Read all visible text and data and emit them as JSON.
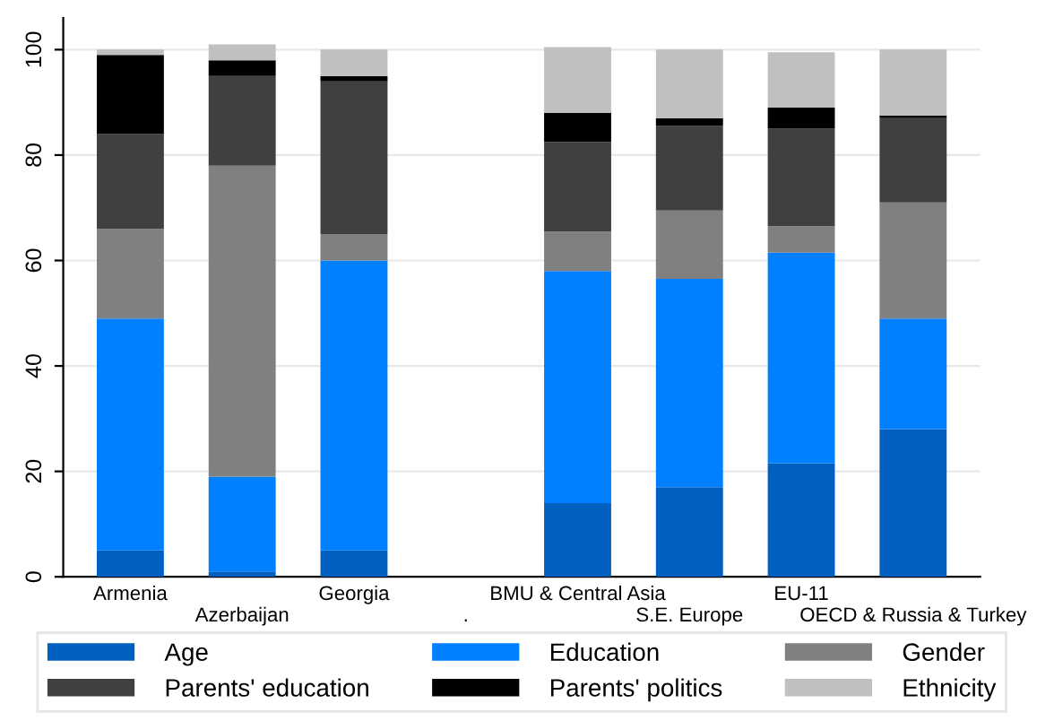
{
  "chart_data": {
    "type": "bar",
    "stacked": true,
    "categories": [
      "Armenia",
      "Azerbaijan",
      "Georgia",
      ".",
      "BMU & Central Asia",
      "S.E. Europe",
      "EU-11",
      "OECD & Russia & Turkey"
    ],
    "series": [
      {
        "name": "Age",
        "color": "#0060c0",
        "values": [
          5,
          1,
          5,
          null,
          14,
          17,
          21.5,
          28
        ]
      },
      {
        "name": "Education",
        "color": "#0080ff",
        "values": [
          44,
          18,
          55,
          null,
          44,
          39.5,
          40,
          21
        ]
      },
      {
        "name": "Gender",
        "color": "#808080",
        "values": [
          17,
          59,
          5,
          null,
          7.5,
          13,
          5,
          22
        ]
      },
      {
        "name": "Parents' education",
        "color": "#404040",
        "values": [
          18,
          17,
          29,
          null,
          17,
          16,
          18.5,
          16
        ]
      },
      {
        "name": "Parents' politics",
        "color": "#000000",
        "values": [
          15,
          3,
          1,
          null,
          5.5,
          1.5,
          4,
          0.5
        ]
      },
      {
        "name": "Ethnicity",
        "color": "#c0c0c0",
        "values": [
          1,
          3,
          5,
          null,
          12.5,
          13,
          10.5,
          12.5
        ]
      }
    ],
    "ylim": [
      0,
      106
    ],
    "yticks": [
      0,
      20,
      40,
      60,
      80,
      100
    ],
    "grid": "y",
    "legend": "bottom"
  }
}
